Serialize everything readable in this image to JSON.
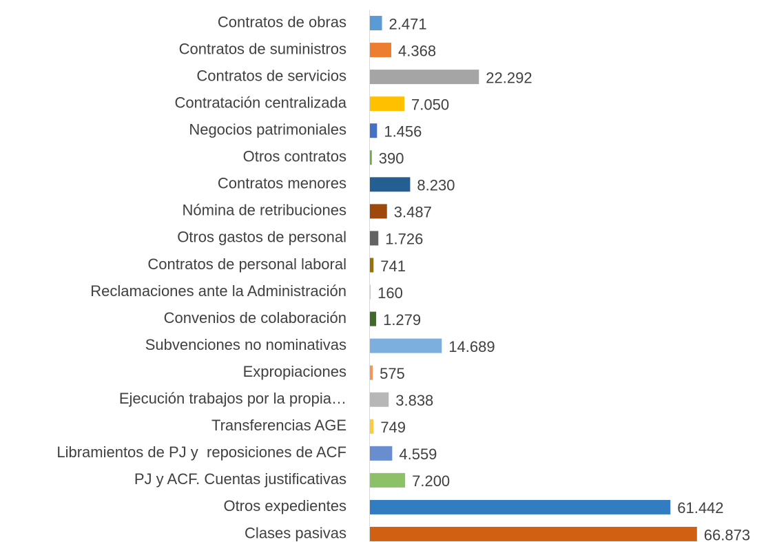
{
  "chart_data": {
    "type": "barh",
    "categories": [
      "Contratos de obras",
      "Contratos de suministros",
      "Contratos de servicios",
      "Contratación centralizada",
      "Negocios patrimoniales",
      "Otros contratos",
      "Contratos menores",
      "Nómina de retribuciones",
      "Otros gastos de personal",
      "Contratos de personal laboral",
      "Reclamaciones ante la Administración",
      "Convenios de colaboración",
      "Subvenciones no nominativas",
      "Expropiaciones",
      "Ejecución trabajos por la propia…",
      "Transferencias AGE",
      "Libramientos de PJ y  reposiciones de ACF",
      "PJ y ACF. Cuentas justificativas",
      "Otros expedientes",
      "Clases pasivas"
    ],
    "values": [
      2471,
      4368,
      22292,
      7050,
      1456,
      390,
      8230,
      3487,
      1726,
      741,
      160,
      1279,
      14689,
      575,
      3838,
      749,
      4559,
      7200,
      61442,
      66873
    ],
    "value_labels": [
      "2.471",
      "4.368",
      "22.292",
      "7.050",
      "1.456",
      "390",
      "8.230",
      "3.487",
      "1.726",
      "741",
      "160",
      "1.279",
      "14.689",
      "575",
      "3.838",
      "749",
      "4.559",
      "7.200",
      "61.442",
      "66.873"
    ],
    "colors": [
      "#5b9bd5",
      "#ed7d31",
      "#a5a5a5",
      "#ffc000",
      "#4472c4",
      "#70ad47",
      "#255e91",
      "#9e480e",
      "#636363",
      "#997300",
      "#c9c9c9",
      "#43682b",
      "#7cafdd",
      "#f1975a",
      "#b7b7b7",
      "#ffcd33",
      "#698ed0",
      "#8cc168",
      "#327dc2",
      "#d26012"
    ],
    "xlim": [
      0,
      70000
    ]
  }
}
